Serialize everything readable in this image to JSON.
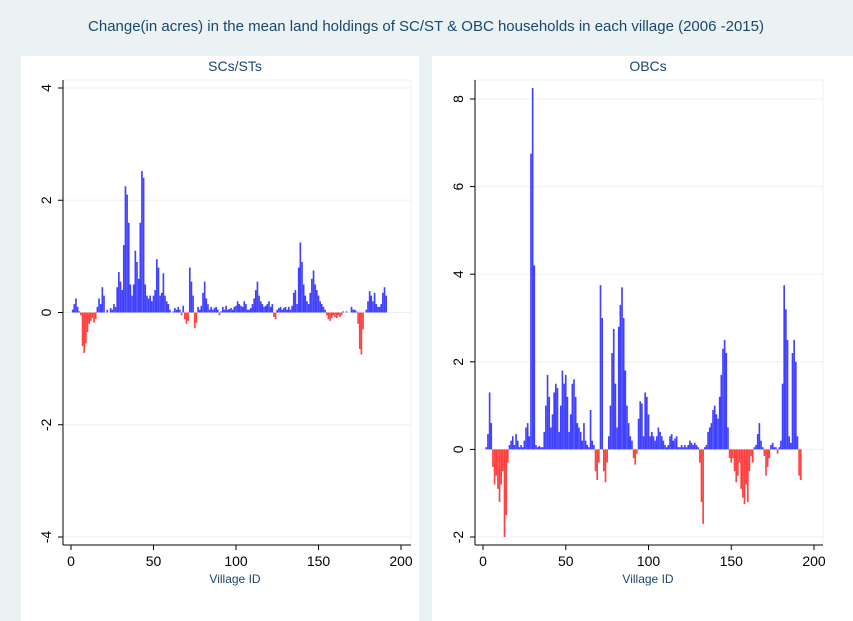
{
  "title": "Change(in acres) in the mean land holdings of SC/ST & OBC households in each village (2006 -2015)",
  "colors": {
    "positive": "#4040ff",
    "negative": "#ff4040",
    "title": "#1a476f",
    "background": "#eaf2f3",
    "plot_bg": "#ffffff",
    "grid": "#eaf2f3"
  },
  "chart_data": [
    {
      "type": "bar",
      "title": "SCs/STs",
      "xlabel": "Village ID",
      "ylabel": "",
      "xlim": [
        0,
        200
      ],
      "ylim": [
        -4,
        4
      ],
      "xticks": [
        0,
        50,
        100,
        150,
        200
      ],
      "yticks": [
        -4,
        -2,
        0,
        2,
        4
      ],
      "grid": true,
      "values": [
        [
          1,
          0.05
        ],
        [
          2,
          0.15
        ],
        [
          3,
          0.25
        ],
        [
          4,
          0.1
        ],
        [
          5,
          0.02
        ],
        [
          6,
          -0.05
        ],
        [
          7,
          -0.6
        ],
        [
          8,
          -0.72
        ],
        [
          9,
          -0.55
        ],
        [
          10,
          -0.35
        ],
        [
          11,
          -0.2
        ],
        [
          12,
          -0.15
        ],
        [
          13,
          -0.1
        ],
        [
          14,
          -0.18
        ],
        [
          15,
          -0.12
        ],
        [
          16,
          0.1
        ],
        [
          17,
          0.25
        ],
        [
          18,
          0.15
        ],
        [
          19,
          0.45
        ],
        [
          20,
          0.3
        ],
        [
          22,
          0.05
        ],
        [
          24,
          0.08
        ],
        [
          25,
          0.05
        ],
        [
          26,
          0.15
        ],
        [
          27,
          0.1
        ],
        [
          28,
          0.45
        ],
        [
          29,
          0.72
        ],
        [
          30,
          0.55
        ],
        [
          31,
          0.4
        ],
        [
          32,
          1.2
        ],
        [
          33,
          2.25
        ],
        [
          34,
          2.1
        ],
        [
          35,
          1.6
        ],
        [
          36,
          0.5
        ],
        [
          37,
          0.3
        ],
        [
          38,
          0.5
        ],
        [
          39,
          1.1
        ],
        [
          40,
          0.9
        ],
        [
          41,
          0.6
        ],
        [
          42,
          1.6
        ],
        [
          43,
          2.52
        ],
        [
          44,
          2.4
        ],
        [
          45,
          0.5
        ],
        [
          46,
          0.3
        ],
        [
          47,
          0.25
        ],
        [
          48,
          0.3
        ],
        [
          49,
          0.2
        ],
        [
          50,
          0.3
        ],
        [
          51,
          0.4
        ],
        [
          52,
          0.95
        ],
        [
          53,
          0.8
        ],
        [
          54,
          0.3
        ],
        [
          55,
          0.35
        ],
        [
          56,
          0.7
        ],
        [
          57,
          0.3
        ],
        [
          58,
          0.2
        ],
        [
          59,
          0.15
        ],
        [
          60,
          0.05
        ],
        [
          62,
          0.02
        ],
        [
          63,
          0.08
        ],
        [
          64,
          0.05
        ],
        [
          65,
          0.1
        ],
        [
          66,
          0.05
        ],
        [
          67,
          -0.05
        ],
        [
          68,
          0.12
        ],
        [
          69,
          -0.12
        ],
        [
          70,
          -0.2
        ],
        [
          71,
          -0.15
        ],
        [
          72,
          0.8
        ],
        [
          73,
          0.55
        ],
        [
          74,
          0.3
        ],
        [
          75,
          -0.28
        ],
        [
          76,
          -0.18
        ],
        [
          77,
          0.1
        ],
        [
          78,
          0.05
        ],
        [
          79,
          0.12
        ],
        [
          80,
          0.35
        ],
        [
          81,
          0.55
        ],
        [
          82,
          0.25
        ],
        [
          83,
          0.15
        ],
        [
          84,
          0.05
        ],
        [
          85,
          0.1
        ],
        [
          86,
          0.05
        ],
        [
          87,
          0.08
        ],
        [
          88,
          0.1
        ],
        [
          89,
          0.05
        ],
        [
          90,
          -0.05
        ],
        [
          91,
          0.02
        ],
        [
          92,
          0.1
        ],
        [
          93,
          0.05
        ],
        [
          94,
          0.12
        ],
        [
          95,
          0.05
        ],
        [
          96,
          0.06
        ],
        [
          97,
          0.08
        ],
        [
          98,
          0.05
        ],
        [
          99,
          0.1
        ],
        [
          100,
          0.12
        ],
        [
          101,
          0.2
        ],
        [
          102,
          0.15
        ],
        [
          103,
          0.12
        ],
        [
          104,
          0.1
        ],
        [
          105,
          0.2
        ],
        [
          106,
          0.15
        ],
        [
          107,
          0.05
        ],
        [
          108,
          0.05
        ],
        [
          109,
          0.08
        ],
        [
          110,
          0.15
        ],
        [
          111,
          0.25
        ],
        [
          112,
          0.4
        ],
        [
          113,
          0.55
        ],
        [
          114,
          0.3
        ],
        [
          115,
          0.2
        ],
        [
          116,
          0.15
        ],
        [
          117,
          0.1
        ],
        [
          118,
          0.12
        ],
        [
          119,
          0.15
        ],
        [
          120,
          0.2
        ],
        [
          121,
          0.1
        ],
        [
          122,
          0.15
        ],
        [
          123,
          -0.08
        ],
        [
          124,
          -0.12
        ],
        [
          125,
          0.05
        ],
        [
          126,
          0.08
        ],
        [
          127,
          0.1
        ],
        [
          128,
          0.05
        ],
        [
          129,
          0.08
        ],
        [
          130,
          0.1
        ],
        [
          131,
          0.05
        ],
        [
          132,
          0.1
        ],
        [
          133,
          0.05
        ],
        [
          134,
          0.12
        ],
        [
          135,
          0.35
        ],
        [
          136,
          0.4
        ],
        [
          137,
          0.15
        ],
        [
          138,
          0.8
        ],
        [
          139,
          1.25
        ],
        [
          140,
          0.9
        ],
        [
          141,
          0.5
        ],
        [
          142,
          0.3
        ],
        [
          143,
          0.2
        ],
        [
          144,
          0.15
        ],
        [
          145,
          0.35
        ],
        [
          146,
          0.6
        ],
        [
          147,
          0.75
        ],
        [
          148,
          0.5
        ],
        [
          149,
          0.4
        ],
        [
          150,
          0.3
        ],
        [
          151,
          0.2
        ],
        [
          152,
          0.15
        ],
        [
          153,
          0.1
        ],
        [
          154,
          0.05
        ],
        [
          155,
          -0.05
        ],
        [
          156,
          -0.12
        ],
        [
          157,
          -0.15
        ],
        [
          158,
          -0.1
        ],
        [
          159,
          -0.05
        ],
        [
          160,
          -0.08
        ],
        [
          161,
          -0.1
        ],
        [
          162,
          -0.05
        ],
        [
          163,
          -0.08
        ],
        [
          164,
          -0.05
        ],
        [
          165,
          0.02
        ],
        [
          167,
          0.02
        ],
        [
          170,
          0.1
        ],
        [
          171,
          0.05
        ],
        [
          172,
          0.05
        ],
        [
          173,
          0.02
        ],
        [
          174,
          -0.2
        ],
        [
          175,
          -0.65
        ],
        [
          176,
          -0.75
        ],
        [
          177,
          -0.3
        ],
        [
          179,
          0.05
        ],
        [
          180,
          0.2
        ],
        [
          181,
          0.38
        ],
        [
          182,
          0.3
        ],
        [
          183,
          0.2
        ],
        [
          184,
          0.35
        ],
        [
          185,
          0.15
        ],
        [
          186,
          0.1
        ],
        [
          187,
          0.1
        ],
        [
          188,
          0.15
        ],
        [
          189,
          0.35
        ],
        [
          190,
          0.45
        ],
        [
          191,
          0.3
        ]
      ]
    },
    {
      "type": "bar",
      "title": "OBCs",
      "xlabel": "Village ID",
      "ylabel": "",
      "xlim": [
        0,
        200
      ],
      "ylim": [
        -2,
        8
      ],
      "xticks": [
        0,
        50,
        100,
        150,
        200
      ],
      "yticks": [
        -2,
        0,
        2,
        4,
        6,
        8
      ],
      "grid": true,
      "values": [
        [
          2,
          0.05
        ],
        [
          3,
          0.35
        ],
        [
          4,
          1.3
        ],
        [
          5,
          0.6
        ],
        [
          6,
          -0.4
        ],
        [
          7,
          -0.8
        ],
        [
          8,
          -0.6
        ],
        [
          9,
          -0.9
        ],
        [
          10,
          -1.2
        ],
        [
          11,
          -0.8
        ],
        [
          12,
          -0.5
        ],
        [
          13,
          -2.0
        ],
        [
          14,
          -1.5
        ],
        [
          15,
          -0.3
        ],
        [
          16,
          0.1
        ],
        [
          17,
          0.2
        ],
        [
          18,
          0.3
        ],
        [
          19,
          0.1
        ],
        [
          20,
          0.35
        ],
        [
          21,
          0.2
        ],
        [
          22,
          0.05
        ],
        [
          23,
          0.1
        ],
        [
          24,
          0.05
        ],
        [
          25,
          0.2
        ],
        [
          26,
          0.5
        ],
        [
          27,
          0.6
        ],
        [
          28,
          0.3
        ],
        [
          29,
          6.75
        ],
        [
          30,
          8.25
        ],
        [
          31,
          4.2
        ],
        [
          32,
          0.1
        ],
        [
          33,
          0.05
        ],
        [
          34,
          0.08
        ],
        [
          35,
          0.05
        ],
        [
          36,
          0.05
        ],
        [
          37,
          0.4
        ],
        [
          38,
          1.0
        ],
        [
          39,
          1.7
        ],
        [
          40,
          1.2
        ],
        [
          41,
          0.5
        ],
        [
          42,
          0.8
        ],
        [
          43,
          1.3
        ],
        [
          44,
          1.5
        ],
        [
          45,
          1.4
        ],
        [
          46,
          0.4
        ],
        [
          47,
          1.0
        ],
        [
          48,
          1.8
        ],
        [
          49,
          1.5
        ],
        [
          50,
          1.7
        ],
        [
          51,
          1.2
        ],
        [
          52,
          0.4
        ],
        [
          53,
          0.8
        ],
        [
          54,
          1.5
        ],
        [
          55,
          1.6
        ],
        [
          56,
          1.2
        ],
        [
          57,
          0.6
        ],
        [
          58,
          0.5
        ],
        [
          59,
          0.4
        ],
        [
          60,
          0.2
        ],
        [
          61,
          0.6
        ],
        [
          62,
          0.2
        ],
        [
          63,
          0.1
        ],
        [
          64,
          0.05
        ],
        [
          65,
          0.9
        ],
        [
          66,
          0.2
        ],
        [
          67,
          0.1
        ],
        [
          68,
          -0.5
        ],
        [
          69,
          -0.7
        ],
        [
          70,
          -0.3
        ],
        [
          71,
          3.75
        ],
        [
          72,
          3.0
        ],
        [
          73,
          -0.5
        ],
        [
          74,
          -0.75
        ],
        [
          75,
          -0.3
        ],
        [
          76,
          0.3
        ],
        [
          77,
          1.0
        ],
        [
          78,
          2.2
        ],
        [
          79,
          2.75
        ],
        [
          80,
          1.5
        ],
        [
          81,
          0.5
        ],
        [
          82,
          2.8
        ],
        [
          83,
          3.3
        ],
        [
          84,
          3.7
        ],
        [
          85,
          3.0
        ],
        [
          86,
          1.8
        ],
        [
          87,
          1.0
        ],
        [
          88,
          0.6
        ],
        [
          89,
          0.3
        ],
        [
          90,
          0.2
        ],
        [
          91,
          -0.2
        ],
        [
          92,
          -0.35
        ],
        [
          93,
          -0.1
        ],
        [
          94,
          0.7
        ],
        [
          95,
          1.1
        ],
        [
          96,
          1.05
        ],
        [
          97,
          0.3
        ],
        [
          98,
          1.3
        ],
        [
          99,
          1.2
        ],
        [
          100,
          0.8
        ],
        [
          101,
          0.3
        ],
        [
          102,
          0.4
        ],
        [
          103,
          0.3
        ],
        [
          104,
          0.2
        ],
        [
          105,
          0.3
        ],
        [
          106,
          0.5
        ],
        [
          107,
          0.4
        ],
        [
          108,
          0.3
        ],
        [
          109,
          0.2
        ],
        [
          110,
          0.1
        ],
        [
          111,
          0.05
        ],
        [
          112,
          0.1
        ],
        [
          113,
          0.3
        ],
        [
          114,
          0.35
        ],
        [
          115,
          0.2
        ],
        [
          116,
          0.25
        ],
        [
          117,
          0.3
        ],
        [
          118,
          0.05
        ],
        [
          119,
          0.05
        ],
        [
          120,
          0.1
        ],
        [
          121,
          0.05
        ],
        [
          122,
          0.1
        ],
        [
          123,
          0.05
        ],
        [
          124,
          0.1
        ],
        [
          125,
          0.2
        ],
        [
          126,
          0.15
        ],
        [
          127,
          0.1
        ],
        [
          128,
          0.15
        ],
        [
          129,
          0.1
        ],
        [
          130,
          0.05
        ],
        [
          131,
          -0.3
        ],
        [
          132,
          -1.2
        ],
        [
          133,
          -1.7
        ],
        [
          134,
          0.05
        ],
        [
          135,
          0.1
        ],
        [
          136,
          0.4
        ],
        [
          137,
          0.5
        ],
        [
          138,
          0.6
        ],
        [
          139,
          0.9
        ],
        [
          140,
          1.0
        ],
        [
          141,
          0.8
        ],
        [
          142,
          0.7
        ],
        [
          143,
          1.2
        ],
        [
          144,
          1.7
        ],
        [
          145,
          2.3
        ],
        [
          146,
          2.5
        ],
        [
          147,
          2.2
        ],
        [
          148,
          0.5
        ],
        [
          149,
          -0.2
        ],
        [
          150,
          -0.3
        ],
        [
          151,
          -0.2
        ],
        [
          152,
          -0.5
        ],
        [
          153,
          -0.75
        ],
        [
          154,
          -0.6
        ],
        [
          155,
          -0.3
        ],
        [
          156,
          -0.9
        ],
        [
          157,
          -1.1
        ],
        [
          158,
          -1.25
        ],
        [
          159,
          -0.8
        ],
        [
          160,
          -1.2
        ],
        [
          161,
          -0.5
        ],
        [
          162,
          -0.15
        ],
        [
          163,
          -0.3
        ],
        [
          164,
          0.05
        ],
        [
          165,
          0.1
        ],
        [
          166,
          0.35
        ],
        [
          167,
          0.6
        ],
        [
          168,
          0.2
        ],
        [
          169,
          0.05
        ],
        [
          170,
          -0.15
        ],
        [
          171,
          -0.6
        ],
        [
          172,
          -0.4
        ],
        [
          173,
          -0.2
        ],
        [
          174,
          0.1
        ],
        [
          175,
          0.15
        ],
        [
          176,
          0.05
        ],
        [
          177,
          0.05
        ],
        [
          178,
          -0.1
        ],
        [
          179,
          0.05
        ],
        [
          180,
          0.2
        ],
        [
          181,
          1.5
        ],
        [
          182,
          3.75
        ],
        [
          183,
          3.2
        ],
        [
          184,
          2.5
        ],
        [
          185,
          0.3
        ],
        [
          186,
          0.15
        ],
        [
          187,
          2.2
        ],
        [
          188,
          2.5
        ],
        [
          189,
          2.0
        ],
        [
          190,
          0.3
        ],
        [
          191,
          -0.6
        ],
        [
          192,
          -0.7
        ]
      ]
    }
  ]
}
